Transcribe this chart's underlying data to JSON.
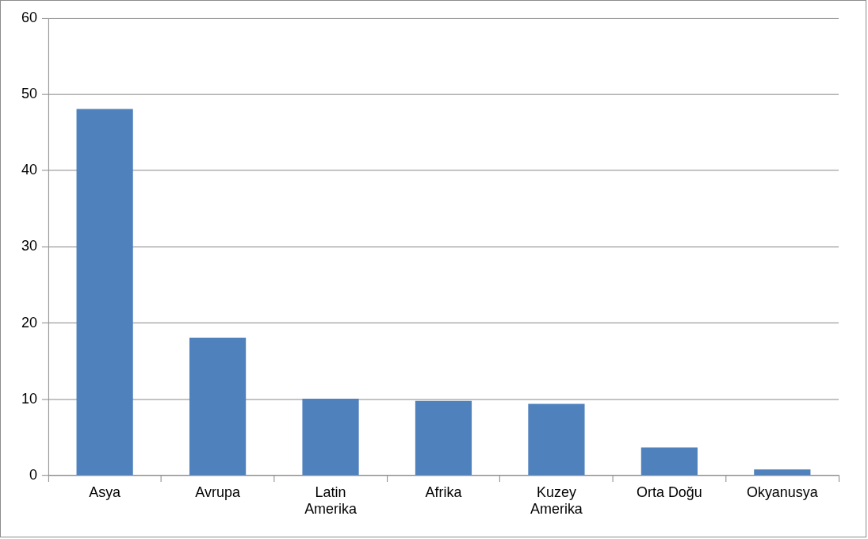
{
  "chart_data": {
    "type": "bar",
    "categories": [
      "Asya",
      "Avrupa",
      "Latin Amerika",
      "Afrika",
      "Kuzey Amerika",
      "Orta Doğu",
      "Okyanusya"
    ],
    "values": [
      48.1,
      18.1,
      10.1,
      9.8,
      9.4,
      3.7,
      0.8
    ],
    "color": "#4f81bd",
    "ylim": [
      0,
      60
    ],
    "yticks": [
      0,
      10,
      20,
      30,
      40,
      50,
      60
    ],
    "grid": "y",
    "legend": false
  }
}
